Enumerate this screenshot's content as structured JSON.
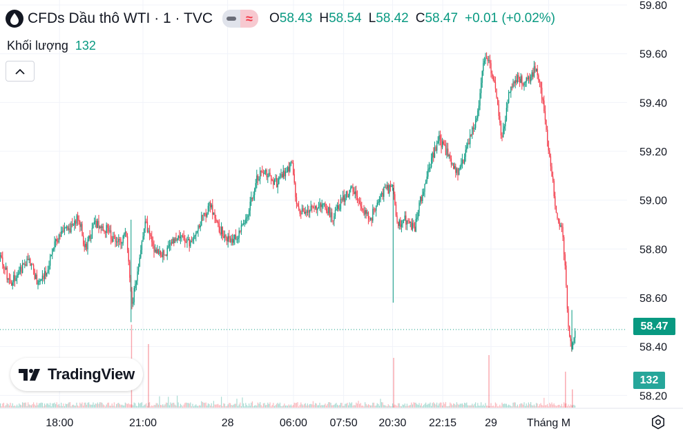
{
  "header": {
    "title": "CFDs Dầu thô WTI · 1 · TVC",
    "ohlc": {
      "o_label": "O",
      "o": "58.43",
      "h_label": "H",
      "h": "58.54",
      "l_label": "L",
      "l": "58.42",
      "c_label": "C",
      "c": "58.47",
      "change": "+0.01 (+0.02%)"
    }
  },
  "volume_legend": {
    "label": "Khối lượng",
    "value": "132"
  },
  "logo": {
    "text": "TradingView"
  },
  "badges": {
    "last_price": "58.47",
    "last_volume": "132"
  },
  "colors": {
    "up": "#089981",
    "down": "#f23645",
    "grid": "#f0f3fa",
    "axis_text": "#131722"
  },
  "chart_data": {
    "type": "candlestick",
    "y_axis": {
      "ylim": [
        58.15,
        59.82
      ],
      "ticks": [
        59.8,
        59.6,
        59.4,
        59.2,
        59.0,
        58.8,
        58.6,
        58.4,
        58.2
      ],
      "tick_labels": [
        "59.80",
        "59.60",
        "59.40",
        "59.20",
        "59.00",
        "58.80",
        "58.60",
        "58.40",
        "58.20"
      ]
    },
    "x_axis": {
      "tick_labels": [
        "18:00",
        "21:00",
        "28",
        "06:00",
        "07:50",
        "20:30",
        "22:15",
        "29",
        "Tháng M"
      ],
      "tick_positions": [
        0.095,
        0.228,
        0.363,
        0.468,
        0.548,
        0.626,
        0.706,
        0.783,
        0.875
      ]
    },
    "last_price": 58.47,
    "price_path": [
      [
        0.0,
        58.77
      ],
      [
        0.015,
        58.66
      ],
      [
        0.03,
        58.71
      ],
      [
        0.045,
        58.76
      ],
      [
        0.06,
        58.66
      ],
      [
        0.075,
        58.72
      ],
      [
        0.085,
        58.82
      ],
      [
        0.095,
        58.86
      ],
      [
        0.11,
        58.88
      ],
      [
        0.125,
        58.93
      ],
      [
        0.135,
        58.8
      ],
      [
        0.15,
        58.9
      ],
      [
        0.17,
        58.88
      ],
      [
        0.185,
        58.82
      ],
      [
        0.2,
        58.86
      ],
      [
        0.205,
        58.72
      ],
      [
        0.21,
        58.58
      ],
      [
        0.218,
        58.7
      ],
      [
        0.23,
        58.92
      ],
      [
        0.245,
        58.8
      ],
      [
        0.262,
        58.78
      ],
      [
        0.28,
        58.85
      ],
      [
        0.3,
        58.82
      ],
      [
        0.32,
        58.92
      ],
      [
        0.335,
        58.98
      ],
      [
        0.35,
        58.88
      ],
      [
        0.365,
        58.83
      ],
      [
        0.38,
        58.86
      ],
      [
        0.395,
        58.95
      ],
      [
        0.41,
        59.1
      ],
      [
        0.425,
        59.11
      ],
      [
        0.44,
        59.07
      ],
      [
        0.455,
        59.12
      ],
      [
        0.465,
        59.15
      ],
      [
        0.472,
        58.97
      ],
      [
        0.485,
        58.95
      ],
      [
        0.5,
        58.96
      ],
      [
        0.515,
        58.98
      ],
      [
        0.53,
        58.93
      ],
      [
        0.545,
        59.0
      ],
      [
        0.56,
        59.05
      ],
      [
        0.575,
        58.98
      ],
      [
        0.59,
        58.92
      ],
      [
        0.605,
        59.02
      ],
      [
        0.625,
        59.06
      ],
      [
        0.632,
        58.9
      ],
      [
        0.645,
        58.92
      ],
      [
        0.66,
        58.88
      ],
      [
        0.67,
        59.0
      ],
      [
        0.685,
        59.15
      ],
      [
        0.7,
        59.25
      ],
      [
        0.715,
        59.18
      ],
      [
        0.73,
        59.1
      ],
      [
        0.745,
        59.22
      ],
      [
        0.76,
        59.35
      ],
      [
        0.772,
        59.58
      ],
      [
        0.78,
        59.55
      ],
      [
        0.79,
        59.45
      ],
      [
        0.8,
        59.25
      ],
      [
        0.812,
        59.45
      ],
      [
        0.825,
        59.5
      ],
      [
        0.84,
        59.48
      ],
      [
        0.855,
        59.55
      ],
      [
        0.865,
        59.4
      ],
      [
        0.875,
        59.2
      ],
      [
        0.885,
        58.97
      ],
      [
        0.895,
        58.88
      ],
      [
        0.9,
        58.75
      ],
      [
        0.906,
        58.45
      ],
      [
        0.912,
        58.4
      ],
      [
        0.918,
        58.47
      ]
    ],
    "volume": {
      "max_value": 600,
      "base_level": 40,
      "spikes": [
        [
          0.209,
          600
        ],
        [
          0.236,
          460
        ],
        [
          0.627,
          360
        ],
        [
          0.779,
          380
        ],
        [
          0.901,
          260
        ],
        [
          0.912,
          132
        ]
      ]
    }
  }
}
